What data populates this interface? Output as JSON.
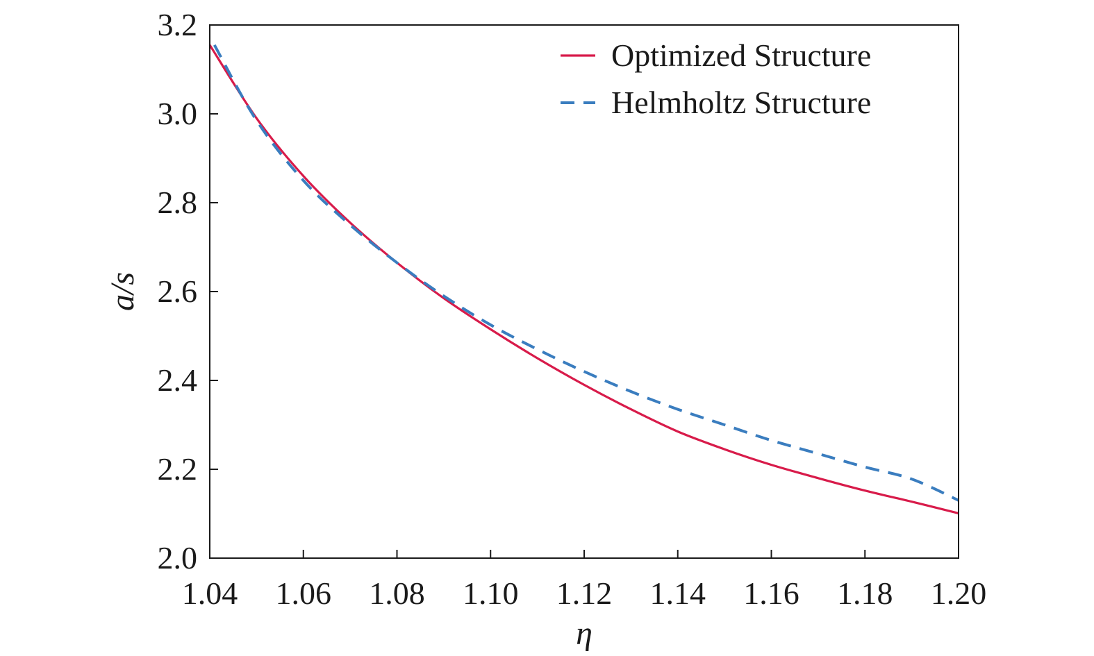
{
  "chart_data": {
    "type": "line",
    "title": "",
    "xlabel": "η",
    "ylabel": "a/s",
    "xlim": [
      1.04,
      1.2
    ],
    "ylim": [
      2.0,
      3.2
    ],
    "x_ticks": [
      "1.04",
      "1.06",
      "1.08",
      "1.10",
      "1.12",
      "1.14",
      "1.16",
      "1.18",
      "1.20"
    ],
    "y_ticks": [
      "2.0",
      "2.2",
      "2.4",
      "2.6",
      "2.8",
      "3.0",
      "3.2"
    ],
    "grid": false,
    "legend_position": "top-right",
    "series": [
      {
        "name": "Optimized Structure",
        "style": "solid",
        "color": "#d81b4a",
        "x": [
          1.04,
          1.05,
          1.06,
          1.07,
          1.08,
          1.09,
          1.1,
          1.11,
          1.12,
          1.13,
          1.14,
          1.15,
          1.16,
          1.17,
          1.18,
          1.19,
          1.2
        ],
        "y": [
          3.155,
          2.99,
          2.86,
          2.755,
          2.665,
          2.585,
          2.515,
          2.45,
          2.39,
          2.335,
          2.285,
          2.245,
          2.21,
          2.18,
          2.152,
          2.127,
          2.101
        ]
      },
      {
        "name": "Helmholtz Structure",
        "style": "dashed",
        "color": "#3a7dbf",
        "x": [
          1.041,
          1.05,
          1.06,
          1.07,
          1.08,
          1.09,
          1.1,
          1.11,
          1.12,
          1.13,
          1.14,
          1.15,
          1.16,
          1.17,
          1.18,
          1.19,
          1.2
        ],
        "y": [
          3.155,
          2.985,
          2.85,
          2.75,
          2.665,
          2.59,
          2.525,
          2.47,
          2.42,
          2.375,
          2.335,
          2.3,
          2.265,
          2.235,
          2.205,
          2.178,
          2.13
        ]
      }
    ]
  }
}
